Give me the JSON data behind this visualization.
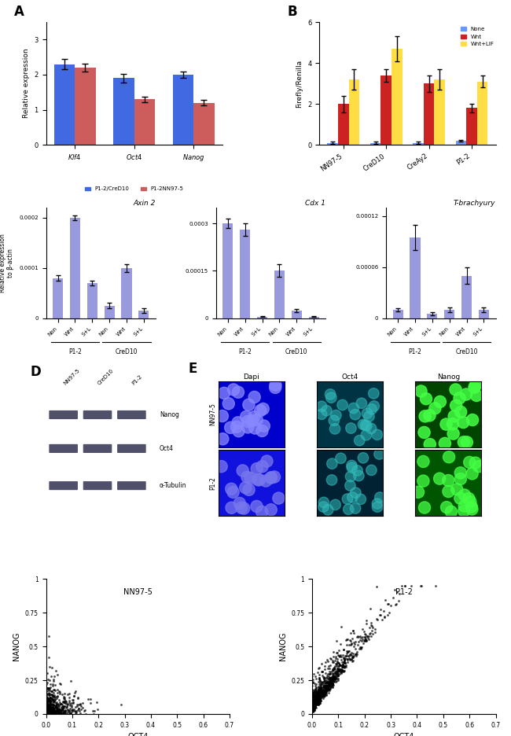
{
  "panelA": {
    "categories": [
      "Klf4",
      "Oct4",
      "Nanog"
    ],
    "blue_vals": [
      2.3,
      1.9,
      2.0
    ],
    "red_vals": [
      2.2,
      1.3,
      1.2
    ],
    "blue_errs": [
      0.15,
      0.12,
      0.1
    ],
    "red_errs": [
      0.12,
      0.08,
      0.08
    ],
    "ylabel": "Relative expression",
    "ylim": [
      0,
      3.5
    ],
    "yticks": [
      0,
      1,
      2,
      3
    ],
    "blue_color": "#4169e1",
    "red_color": "#cd5c5c",
    "legend1": "P1-2/CreD10",
    "legend2": "P1-2NN97-5"
  },
  "panelB": {
    "categories": [
      "NN97-5",
      "CreD10",
      "CreAy2",
      "P1-2"
    ],
    "none_vals": [
      0.1,
      0.1,
      0.1,
      0.2
    ],
    "wnt_vals": [
      2.0,
      3.4,
      3.0,
      1.8
    ],
    "wntlif_vals": [
      3.2,
      4.7,
      3.2,
      3.1
    ],
    "none_errs": [
      0.05,
      0.05,
      0.05,
      0.05
    ],
    "wnt_errs": [
      0.4,
      0.3,
      0.4,
      0.2
    ],
    "wntlif_errs": [
      0.5,
      0.6,
      0.5,
      0.3
    ],
    "ylabel": "Firefly/Renilla",
    "ylim": [
      0,
      6
    ],
    "yticks": [
      0,
      2,
      4,
      6
    ],
    "none_color": "#6699ff",
    "wnt_color": "#cc2222",
    "wntlif_color": "#ffdd44",
    "legend_none": "None",
    "legend_wnt": "Wnt",
    "legend_wntlif": "Wnt+LIF"
  },
  "panelC": {
    "groups": [
      "Non",
      "Wnt",
      "S+L",
      "Non",
      "Wnt",
      "S+L"
    ],
    "axin2_vals": [
      8e-05,
      0.0002,
      7e-05,
      2.5e-05,
      0.0001,
      1.5e-05
    ],
    "axin2_errs": [
      5e-06,
      5e-06,
      5e-06,
      5e-06,
      8e-06,
      5e-06
    ],
    "cdx1_vals": [
      0.0003,
      0.00028,
      5e-06,
      0.00015,
      2.5e-05,
      5e-06
    ],
    "cdx1_errs": [
      1.5e-05,
      2e-05,
      2e-06,
      2e-05,
      5e-06,
      2e-06
    ],
    "tbra_vals": [
      1e-05,
      9.5e-05,
      5e-06,
      1e-05,
      5e-05,
      1e-05
    ],
    "tbra_errs": [
      2e-06,
      1.5e-05,
      2e-06,
      3e-06,
      1e-05,
      3e-06
    ],
    "bar_color": "#9999dd",
    "axin2_ylim": [
      0,
      0.00022
    ],
    "axin2_yticks": [
      0,
      0.0001,
      0.0002
    ],
    "axin2_ytick_labels": [
      "0",
      "0.0001",
      "0.0002"
    ],
    "cdx1_ylim": [
      0,
      0.00035
    ],
    "cdx1_yticks": [
      0,
      0.00015,
      0.0003
    ],
    "cdx1_ytick_labels": [
      "0",
      "0.00015",
      "0.0003"
    ],
    "tbra_ylim": [
      0,
      0.00013
    ],
    "tbra_yticks": [
      0,
      6e-05,
      0.00012
    ],
    "tbra_ytick_labels": [
      "0",
      "0.00006",
      "0.00012"
    ]
  },
  "panelD": {
    "samples": [
      "NN97-5",
      "CreD10",
      "P1-2"
    ],
    "bands": [
      "Nanog",
      "Oct4",
      "α-Tubulin"
    ]
  },
  "panelE": {
    "col_labels": [
      "Dapi",
      "Oct4",
      "Nanog"
    ],
    "row_labels": [
      "NN97-5",
      "P1-2"
    ],
    "colors": {
      "NN97-5_Dapi": "#0000cc",
      "NN97-5_Oct4": "#003344",
      "NN97-5_Nanog": "#004400",
      "P1-2_Dapi": "#1111dd",
      "P1-2_Oct4": "#002233",
      "P1-2_Nanog": "#005500"
    }
  },
  "panelF": {
    "plot1_title": "NN97-5",
    "plot2_title": "P1-2",
    "xlabel": "OCT4",
    "ylabel": "NANOG",
    "xlim": [
      0,
      0.7
    ],
    "ylim": [
      0,
      1.0
    ],
    "xticks": [
      0,
      0.1,
      0.2,
      0.3,
      0.4,
      0.5,
      0.6,
      0.7
    ],
    "yticks": [
      0,
      0.25,
      0.5,
      0.75,
      1.0
    ],
    "ytick_labels": [
      "0",
      "0.25",
      "0.5",
      "0.75",
      "1"
    ]
  },
  "bg_color": "#ffffff"
}
